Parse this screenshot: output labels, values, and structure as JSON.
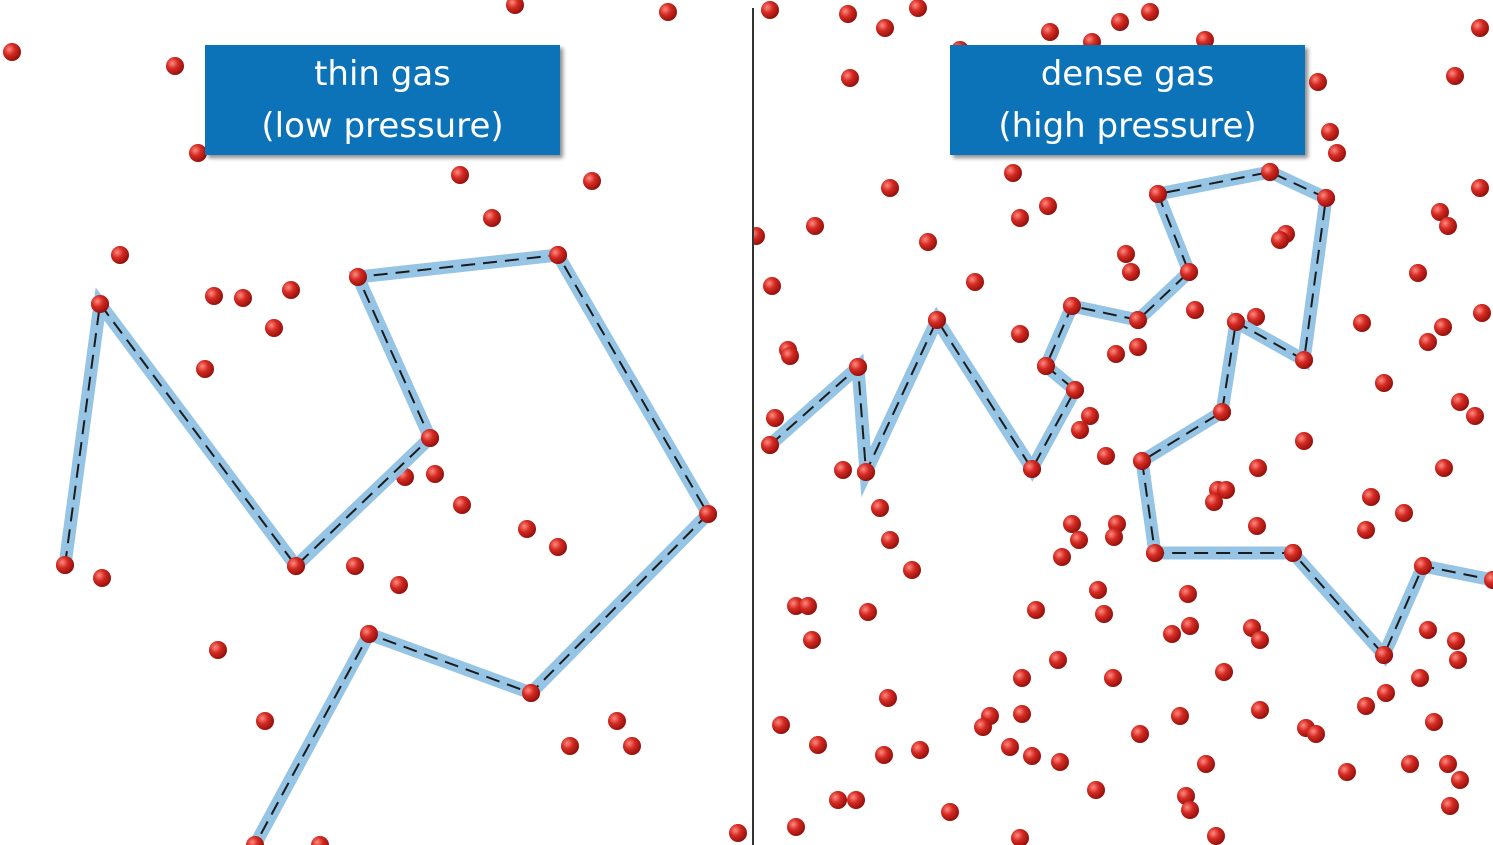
{
  "panels": [
    {
      "id": "thin",
      "title_line1": "thin gas",
      "title_line2": "(low pressure)"
    },
    {
      "id": "dense",
      "title_line1": "dense gas",
      "title_line2": "(high pressure)"
    }
  ],
  "colors": {
    "molecule": "#c8201c",
    "molecule_highlight": "#ff8a80",
    "path_band": "#8fc1e3",
    "path_dash": "#1b1b1b",
    "label_bg": "#0c73b8",
    "label_text": "#ffffff",
    "divider": "#333333"
  }
}
